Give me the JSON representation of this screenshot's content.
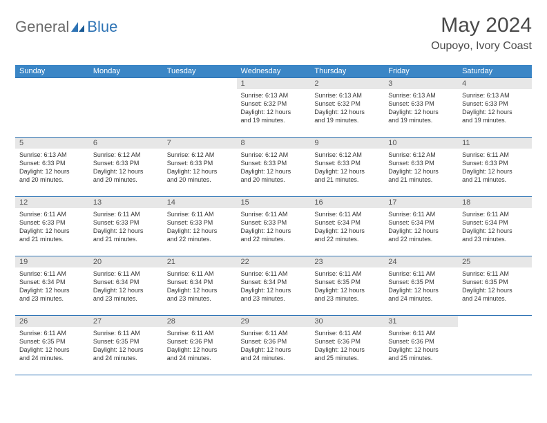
{
  "logo": {
    "general": "General",
    "blue": "Blue"
  },
  "title": "May 2024",
  "location": "Oupoyo, Ivory Coast",
  "colors": {
    "header_bg": "#3b86c6",
    "header_text": "#ffffff",
    "border": "#2f74b5",
    "daynum_bg": "#e7e7e7",
    "text": "#333333",
    "logo_gray": "#6a6a6a",
    "logo_blue": "#2f74b5"
  },
  "day_names": [
    "Sunday",
    "Monday",
    "Tuesday",
    "Wednesday",
    "Thursday",
    "Friday",
    "Saturday"
  ],
  "weeks": [
    [
      {
        "n": "",
        "lines": []
      },
      {
        "n": "",
        "lines": []
      },
      {
        "n": "",
        "lines": []
      },
      {
        "n": "1",
        "lines": [
          "Sunrise: 6:13 AM",
          "Sunset: 6:32 PM",
          "Daylight: 12 hours",
          "and 19 minutes."
        ]
      },
      {
        "n": "2",
        "lines": [
          "Sunrise: 6:13 AM",
          "Sunset: 6:32 PM",
          "Daylight: 12 hours",
          "and 19 minutes."
        ]
      },
      {
        "n": "3",
        "lines": [
          "Sunrise: 6:13 AM",
          "Sunset: 6:33 PM",
          "Daylight: 12 hours",
          "and 19 minutes."
        ]
      },
      {
        "n": "4",
        "lines": [
          "Sunrise: 6:13 AM",
          "Sunset: 6:33 PM",
          "Daylight: 12 hours",
          "and 19 minutes."
        ]
      }
    ],
    [
      {
        "n": "5",
        "lines": [
          "Sunrise: 6:13 AM",
          "Sunset: 6:33 PM",
          "Daylight: 12 hours",
          "and 20 minutes."
        ]
      },
      {
        "n": "6",
        "lines": [
          "Sunrise: 6:12 AM",
          "Sunset: 6:33 PM",
          "Daylight: 12 hours",
          "and 20 minutes."
        ]
      },
      {
        "n": "7",
        "lines": [
          "Sunrise: 6:12 AM",
          "Sunset: 6:33 PM",
          "Daylight: 12 hours",
          "and 20 minutes."
        ]
      },
      {
        "n": "8",
        "lines": [
          "Sunrise: 6:12 AM",
          "Sunset: 6:33 PM",
          "Daylight: 12 hours",
          "and 20 minutes."
        ]
      },
      {
        "n": "9",
        "lines": [
          "Sunrise: 6:12 AM",
          "Sunset: 6:33 PM",
          "Daylight: 12 hours",
          "and 21 minutes."
        ]
      },
      {
        "n": "10",
        "lines": [
          "Sunrise: 6:12 AM",
          "Sunset: 6:33 PM",
          "Daylight: 12 hours",
          "and 21 minutes."
        ]
      },
      {
        "n": "11",
        "lines": [
          "Sunrise: 6:11 AM",
          "Sunset: 6:33 PM",
          "Daylight: 12 hours",
          "and 21 minutes."
        ]
      }
    ],
    [
      {
        "n": "12",
        "lines": [
          "Sunrise: 6:11 AM",
          "Sunset: 6:33 PM",
          "Daylight: 12 hours",
          "and 21 minutes."
        ]
      },
      {
        "n": "13",
        "lines": [
          "Sunrise: 6:11 AM",
          "Sunset: 6:33 PM",
          "Daylight: 12 hours",
          "and 21 minutes."
        ]
      },
      {
        "n": "14",
        "lines": [
          "Sunrise: 6:11 AM",
          "Sunset: 6:33 PM",
          "Daylight: 12 hours",
          "and 22 minutes."
        ]
      },
      {
        "n": "15",
        "lines": [
          "Sunrise: 6:11 AM",
          "Sunset: 6:33 PM",
          "Daylight: 12 hours",
          "and 22 minutes."
        ]
      },
      {
        "n": "16",
        "lines": [
          "Sunrise: 6:11 AM",
          "Sunset: 6:34 PM",
          "Daylight: 12 hours",
          "and 22 minutes."
        ]
      },
      {
        "n": "17",
        "lines": [
          "Sunrise: 6:11 AM",
          "Sunset: 6:34 PM",
          "Daylight: 12 hours",
          "and 22 minutes."
        ]
      },
      {
        "n": "18",
        "lines": [
          "Sunrise: 6:11 AM",
          "Sunset: 6:34 PM",
          "Daylight: 12 hours",
          "and 23 minutes."
        ]
      }
    ],
    [
      {
        "n": "19",
        "lines": [
          "Sunrise: 6:11 AM",
          "Sunset: 6:34 PM",
          "Daylight: 12 hours",
          "and 23 minutes."
        ]
      },
      {
        "n": "20",
        "lines": [
          "Sunrise: 6:11 AM",
          "Sunset: 6:34 PM",
          "Daylight: 12 hours",
          "and 23 minutes."
        ]
      },
      {
        "n": "21",
        "lines": [
          "Sunrise: 6:11 AM",
          "Sunset: 6:34 PM",
          "Daylight: 12 hours",
          "and 23 minutes."
        ]
      },
      {
        "n": "22",
        "lines": [
          "Sunrise: 6:11 AM",
          "Sunset: 6:34 PM",
          "Daylight: 12 hours",
          "and 23 minutes."
        ]
      },
      {
        "n": "23",
        "lines": [
          "Sunrise: 6:11 AM",
          "Sunset: 6:35 PM",
          "Daylight: 12 hours",
          "and 23 minutes."
        ]
      },
      {
        "n": "24",
        "lines": [
          "Sunrise: 6:11 AM",
          "Sunset: 6:35 PM",
          "Daylight: 12 hours",
          "and 24 minutes."
        ]
      },
      {
        "n": "25",
        "lines": [
          "Sunrise: 6:11 AM",
          "Sunset: 6:35 PM",
          "Daylight: 12 hours",
          "and 24 minutes."
        ]
      }
    ],
    [
      {
        "n": "26",
        "lines": [
          "Sunrise: 6:11 AM",
          "Sunset: 6:35 PM",
          "Daylight: 12 hours",
          "and 24 minutes."
        ]
      },
      {
        "n": "27",
        "lines": [
          "Sunrise: 6:11 AM",
          "Sunset: 6:35 PM",
          "Daylight: 12 hours",
          "and 24 minutes."
        ]
      },
      {
        "n": "28",
        "lines": [
          "Sunrise: 6:11 AM",
          "Sunset: 6:36 PM",
          "Daylight: 12 hours",
          "and 24 minutes."
        ]
      },
      {
        "n": "29",
        "lines": [
          "Sunrise: 6:11 AM",
          "Sunset: 6:36 PM",
          "Daylight: 12 hours",
          "and 24 minutes."
        ]
      },
      {
        "n": "30",
        "lines": [
          "Sunrise: 6:11 AM",
          "Sunset: 6:36 PM",
          "Daylight: 12 hours",
          "and 25 minutes."
        ]
      },
      {
        "n": "31",
        "lines": [
          "Sunrise: 6:11 AM",
          "Sunset: 6:36 PM",
          "Daylight: 12 hours",
          "and 25 minutes."
        ]
      },
      {
        "n": "",
        "lines": []
      }
    ]
  ]
}
